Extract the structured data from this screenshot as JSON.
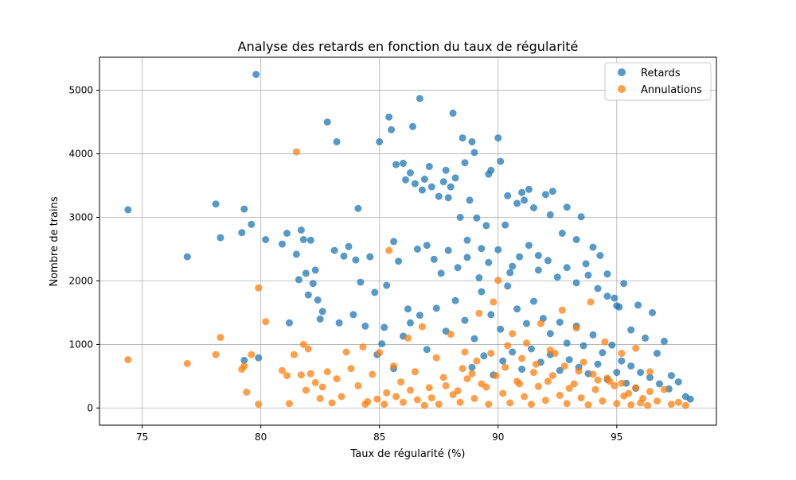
{
  "chart_data": {
    "type": "scatter",
    "title": "Analyse des retards en fonction du taux de régularité",
    "xlabel": "Taux de régularité (%)",
    "ylabel": "Nombre de trains",
    "xlim": [
      73.2,
      99.2
    ],
    "ylim": [
      -270,
      5520
    ],
    "xticks": [
      75,
      80,
      85,
      90,
      95
    ],
    "yticks": [
      0,
      1000,
      2000,
      3000,
      4000,
      5000
    ],
    "grid": true,
    "legend_position": "top-right",
    "series": [
      {
        "name": "Retards",
        "color": "#1f77b4",
        "points": [
          [
            74.4,
            3120
          ],
          [
            76.9,
            2380
          ],
          [
            78.1,
            3210
          ],
          [
            78.3,
            2680
          ],
          [
            79.2,
            2760
          ],
          [
            79.3,
            3130
          ],
          [
            79.3,
            750
          ],
          [
            79.6,
            2890
          ],
          [
            79.8,
            5250
          ],
          [
            79.9,
            790
          ],
          [
            80.2,
            2650
          ],
          [
            80.9,
            2580
          ],
          [
            81.1,
            2750
          ],
          [
            81.2,
            1340
          ],
          [
            81.5,
            2420
          ],
          [
            81.6,
            2020
          ],
          [
            81.7,
            2800
          ],
          [
            81.8,
            2650
          ],
          [
            81.9,
            2120
          ],
          [
            82.0,
            1780
          ],
          [
            82.1,
            2640
          ],
          [
            82.2,
            1960
          ],
          [
            82.3,
            2170
          ],
          [
            82.4,
            1700
          ],
          [
            82.5,
            1400
          ],
          [
            82.6,
            1520
          ],
          [
            82.8,
            4500
          ],
          [
            83.1,
            2480
          ],
          [
            83.2,
            4190
          ],
          [
            83.3,
            1340
          ],
          [
            83.5,
            2390
          ],
          [
            83.7,
            2540
          ],
          [
            83.9,
            1470
          ],
          [
            84.0,
            2330
          ],
          [
            84.1,
            3140
          ],
          [
            84.2,
            1980
          ],
          [
            84.4,
            1290
          ],
          [
            84.6,
            2380
          ],
          [
            84.8,
            1820
          ],
          [
            85.0,
            4190
          ],
          [
            85.2,
            1270
          ],
          [
            85.3,
            1930
          ],
          [
            85.4,
            4580
          ],
          [
            85.5,
            4380
          ],
          [
            85.6,
            2620
          ],
          [
            85.7,
            3830
          ],
          [
            85.8,
            2310
          ],
          [
            86.0,
            3850
          ],
          [
            86.1,
            3590
          ],
          [
            86.2,
            1560
          ],
          [
            86.3,
            3700
          ],
          [
            86.4,
            4430
          ],
          [
            86.5,
            3530
          ],
          [
            86.6,
            2500
          ],
          [
            86.7,
            4870
          ],
          [
            86.8,
            3430
          ],
          [
            86.9,
            3600
          ],
          [
            87.0,
            2560
          ],
          [
            87.1,
            3800
          ],
          [
            87.2,
            3480
          ],
          [
            87.3,
            2340
          ],
          [
            87.5,
            3330
          ],
          [
            87.6,
            2120
          ],
          [
            87.7,
            3560
          ],
          [
            87.8,
            3740
          ],
          [
            87.9,
            3310
          ],
          [
            88.0,
            3480
          ],
          [
            88.1,
            4640
          ],
          [
            88.2,
            3620
          ],
          [
            88.4,
            3000
          ],
          [
            88.5,
            4250
          ],
          [
            88.6,
            3860
          ],
          [
            88.7,
            2370
          ],
          [
            88.8,
            3270
          ],
          [
            88.9,
            4190
          ],
          [
            89.0,
            4020
          ],
          [
            89.1,
            2990
          ],
          [
            89.3,
            2510
          ],
          [
            89.5,
            2870
          ],
          [
            89.6,
            3680
          ],
          [
            89.7,
            3740
          ],
          [
            90.0,
            4250
          ],
          [
            90.1,
            3880
          ],
          [
            90.3,
            2880
          ],
          [
            90.4,
            3340
          ],
          [
            90.6,
            2230
          ],
          [
            90.8,
            3220
          ],
          [
            91.0,
            3390
          ],
          [
            91.1,
            3270
          ],
          [
            91.3,
            3440
          ],
          [
            91.5,
            3150
          ],
          [
            91.7,
            2400
          ],
          [
            92.0,
            3360
          ],
          [
            92.2,
            3040
          ],
          [
            92.3,
            3410
          ],
          [
            92.7,
            2750
          ],
          [
            92.9,
            3160
          ],
          [
            93.3,
            2650
          ],
          [
            93.5,
            3010
          ],
          [
            93.7,
            2270
          ],
          [
            94.0,
            2530
          ],
          [
            94.3,
            2400
          ],
          [
            94.6,
            2110
          ],
          [
            94.9,
            1730
          ],
          [
            95.1,
            1590
          ],
          [
            95.3,
            1960
          ],
          [
            95.6,
            1230
          ],
          [
            95.9,
            1620
          ],
          [
            96.2,
            1100
          ],
          [
            96.5,
            1500
          ],
          [
            96.7,
            860
          ],
          [
            97.0,
            1050
          ],
          [
            97.3,
            510
          ],
          [
            97.6,
            410
          ],
          [
            97.9,
            180
          ],
          [
            98.1,
            140
          ],
          [
            84.9,
            840
          ],
          [
            85.1,
            1010
          ],
          [
            85.6,
            620
          ],
          [
            86.0,
            1130
          ],
          [
            86.3,
            1340
          ],
          [
            86.7,
            1460
          ],
          [
            87.0,
            920
          ],
          [
            87.4,
            1570
          ],
          [
            87.8,
            1210
          ],
          [
            88.2,
            1690
          ],
          [
            88.6,
            1380
          ],
          [
            89.0,
            1090
          ],
          [
            89.3,
            1830
          ],
          [
            89.7,
            1470
          ],
          [
            90.1,
            1240
          ],
          [
            90.4,
            1920
          ],
          [
            90.8,
            1560
          ],
          [
            91.2,
            1330
          ],
          [
            91.5,
            1680
          ],
          [
            91.9,
            1410
          ],
          [
            92.2,
            1170
          ],
          [
            92.6,
            1350
          ],
          [
            92.9,
            1020
          ],
          [
            93.3,
            1290
          ],
          [
            93.6,
            980
          ],
          [
            94.0,
            1150
          ],
          [
            94.4,
            870
          ],
          [
            94.8,
            990
          ],
          [
            95.2,
            740
          ],
          [
            95.6,
            660
          ],
          [
            96.0,
            560
          ],
          [
            96.4,
            480
          ],
          [
            96.8,
            380
          ],
          [
            97.2,
            300
          ],
          [
            88.9,
            640
          ],
          [
            89.4,
            820
          ],
          [
            89.8,
            520
          ],
          [
            90.2,
            740
          ],
          [
            90.6,
            880
          ],
          [
            91.0,
            610
          ],
          [
            91.4,
            930
          ],
          [
            91.8,
            720
          ],
          [
            92.2,
            840
          ],
          [
            92.6,
            590
          ],
          [
            93.0,
            760
          ],
          [
            93.4,
            640
          ],
          [
            93.8,
            540
          ],
          [
            94.2,
            690
          ],
          [
            94.6,
            450
          ],
          [
            95.0,
            560
          ],
          [
            95.4,
            390
          ],
          [
            95.8,
            310
          ],
          [
            87.9,
            2480
          ],
          [
            88.3,
            2210
          ],
          [
            88.7,
            2640
          ],
          [
            89.2,
            2050
          ],
          [
            89.6,
            2290
          ],
          [
            90.0,
            2490
          ],
          [
            90.5,
            2130
          ],
          [
            90.9,
            2380
          ],
          [
            91.3,
            2560
          ],
          [
            91.7,
            2170
          ],
          [
            92.1,
            2320
          ],
          [
            92.5,
            2060
          ],
          [
            92.9,
            2210
          ],
          [
            93.3,
            1970
          ],
          [
            93.8,
            2090
          ],
          [
            94.2,
            1880
          ],
          [
            94.6,
            1760
          ],
          [
            95.0,
            1610
          ]
        ]
      },
      {
        "name": "Annulations",
        "color": "#ff7f0e",
        "points": [
          [
            74.4,
            760
          ],
          [
            76.9,
            700
          ],
          [
            78.1,
            840
          ],
          [
            78.3,
            1110
          ],
          [
            79.2,
            610
          ],
          [
            79.3,
            660
          ],
          [
            79.4,
            250
          ],
          [
            79.6,
            840
          ],
          [
            79.9,
            1890
          ],
          [
            79.9,
            60
          ],
          [
            80.2,
            1360
          ],
          [
            80.9,
            590
          ],
          [
            81.1,
            510
          ],
          [
            81.2,
            70
          ],
          [
            81.4,
            840
          ],
          [
            81.5,
            4030
          ],
          [
            81.7,
            520
          ],
          [
            81.8,
            1000
          ],
          [
            81.9,
            280
          ],
          [
            82.0,
            930
          ],
          [
            82.1,
            540
          ],
          [
            82.3,
            400
          ],
          [
            82.5,
            150
          ],
          [
            82.6,
            330
          ],
          [
            82.8,
            570
          ],
          [
            83.0,
            80
          ],
          [
            83.2,
            460
          ],
          [
            83.4,
            180
          ],
          [
            83.6,
            880
          ],
          [
            83.8,
            620
          ],
          [
            84.1,
            350
          ],
          [
            84.3,
            960
          ],
          [
            84.5,
            100
          ],
          [
            84.7,
            530
          ],
          [
            85.0,
            870
          ],
          [
            85.3,
            240
          ],
          [
            85.4,
            2480
          ],
          [
            85.6,
            660
          ],
          [
            85.9,
            410
          ],
          [
            86.2,
            1100
          ],
          [
            86.5,
            570
          ],
          [
            86.8,
            1280
          ],
          [
            87.1,
            320
          ],
          [
            87.4,
            790
          ],
          [
            87.7,
            480
          ],
          [
            88.0,
            1160
          ],
          [
            88.3,
            270
          ],
          [
            88.6,
            880
          ],
          [
            88.9,
            540
          ],
          [
            89.2,
            1490
          ],
          [
            89.5,
            330
          ],
          [
            89.8,
            1670
          ],
          [
            90.0,
            2010
          ],
          [
            90.3,
            640
          ],
          [
            90.6,
            1170
          ],
          [
            90.9,
            380
          ],
          [
            91.2,
            1020
          ],
          [
            91.5,
            560
          ],
          [
            91.8,
            1330
          ],
          [
            92.1,
            420
          ],
          [
            92.4,
            860
          ],
          [
            92.7,
            1540
          ],
          [
            93.0,
            310
          ],
          [
            93.3,
            1260
          ],
          [
            93.6,
            720
          ],
          [
            93.9,
            1670
          ],
          [
            94.2,
            440
          ],
          [
            94.5,
            1040
          ],
          [
            94.9,
            350
          ],
          [
            95.2,
            860
          ],
          [
            95.5,
            230
          ],
          [
            95.8,
            940
          ],
          [
            96.1,
            150
          ],
          [
            96.4,
            570
          ],
          [
            96.7,
            110
          ],
          [
            97.0,
            290
          ],
          [
            97.3,
            60
          ],
          [
            97.6,
            90
          ],
          [
            97.9,
            40
          ],
          [
            88.1,
            210
          ],
          [
            88.4,
            90
          ],
          [
            88.7,
            460
          ],
          [
            89.0,
            150
          ],
          [
            89.3,
            380
          ],
          [
            89.6,
            60
          ],
          [
            89.9,
            510
          ],
          [
            90.2,
            230
          ],
          [
            90.5,
            80
          ],
          [
            90.8,
            420
          ],
          [
            91.1,
            180
          ],
          [
            91.4,
            60
          ],
          [
            91.7,
            340
          ],
          [
            92.0,
            120
          ],
          [
            92.3,
            510
          ],
          [
            92.6,
            200
          ],
          [
            92.9,
            70
          ],
          [
            93.2,
            380
          ],
          [
            93.5,
            160
          ],
          [
            93.8,
            50
          ],
          [
            94.1,
            290
          ],
          [
            94.4,
            110
          ],
          [
            94.7,
            420
          ],
          [
            95.0,
            70
          ],
          [
            95.3,
            190
          ],
          [
            95.6,
            50
          ],
          [
            96.0,
            80
          ],
          [
            96.3,
            40
          ],
          [
            87.2,
            160
          ],
          [
            87.5,
            60
          ],
          [
            87.8,
            350
          ],
          [
            86.6,
            130
          ],
          [
            86.9,
            40
          ],
          [
            86.3,
            280
          ],
          [
            86.0,
            90
          ],
          [
            85.7,
            180
          ],
          [
            85.2,
            60
          ],
          [
            84.9,
            140
          ],
          [
            84.4,
            60
          ],
          [
            88.5,
            620
          ],
          [
            89.1,
            740
          ],
          [
            89.7,
            860
          ],
          [
            90.4,
            980
          ],
          [
            91.0,
            780
          ],
          [
            91.6,
            690
          ],
          [
            92.2,
            910
          ],
          [
            92.8,
            660
          ],
          [
            93.4,
            580
          ],
          [
            94.0,
            530
          ],
          [
            94.6,
            470
          ],
          [
            95.2,
            390
          ],
          [
            95.8,
            320
          ],
          [
            96.4,
            260
          ]
        ]
      }
    ]
  }
}
